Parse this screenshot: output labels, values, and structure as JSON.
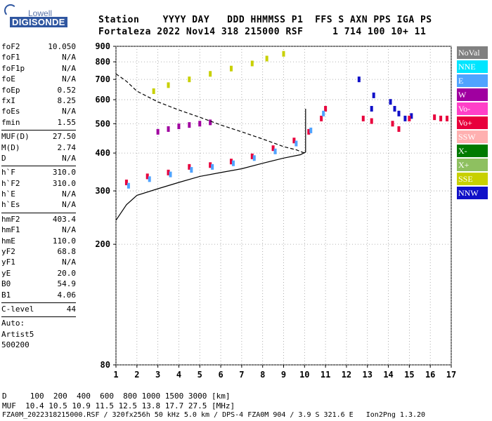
{
  "logo": {
    "top": "Lowell",
    "bottom": "DIGISONDE"
  },
  "header": {
    "line1": "Station    YYYY DAY   DDD HHMMSS P1  FFS S AXN PPS IGA PS",
    "line2": "Fortaleza 2022 Nov14 318 215000 RSF     1 714 100 10+ 11"
  },
  "params": [
    {
      "k": "foF2",
      "v": "10.050"
    },
    {
      "k": "foF1",
      "v": "N/A"
    },
    {
      "k": "foF1p",
      "v": "N/A"
    },
    {
      "k": "foE",
      "v": "N/A"
    },
    {
      "k": "foEp",
      "v": "0.52"
    },
    {
      "k": "fxI",
      "v": "8.25"
    },
    {
      "k": "foEs",
      "v": "N/A"
    },
    {
      "k": "fmin",
      "v": "1.55"
    },
    {
      "sep": true
    },
    {
      "k": "MUF(D)",
      "v": "27.50"
    },
    {
      "k": "M(D)",
      "v": "2.74"
    },
    {
      "k": "D",
      "v": "N/A"
    },
    {
      "sep": true
    },
    {
      "k": "h`F",
      "v": "310.0"
    },
    {
      "k": "h`F2",
      "v": "310.0"
    },
    {
      "k": "h`E",
      "v": "N/A"
    },
    {
      "k": "h`Es",
      "v": "N/A"
    },
    {
      "sep": true
    },
    {
      "k": "hmF2",
      "v": "403.4"
    },
    {
      "k": "hmF1",
      "v": "N/A"
    },
    {
      "k": "hmE",
      "v": "110.0"
    },
    {
      "k": "yF2",
      "v": "68.8"
    },
    {
      "k": "yF1",
      "v": "N/A"
    },
    {
      "k": "yE",
      "v": "20.0"
    },
    {
      "k": "B0",
      "v": "54.9"
    },
    {
      "k": "B1",
      "v": "4.06"
    },
    {
      "sep": true
    },
    {
      "k": "C-level",
      "v": "44"
    },
    {
      "sep": true
    },
    {
      "k": "Auto:",
      "v": ""
    },
    {
      "k": "Artist5",
      "v": ""
    },
    {
      "k": "500200",
      "v": ""
    }
  ],
  "legend": [
    {
      "label": "NoVal",
      "color": "#808080"
    },
    {
      "label": "NNE",
      "color": "#00e5ff"
    },
    {
      "label": "E",
      "color": "#4fa3ff"
    },
    {
      "label": "W",
      "color": "#a000a0"
    },
    {
      "label": "Vo-",
      "color": "#ff40c8"
    },
    {
      "label": "Vo+",
      "color": "#e8003c"
    },
    {
      "label": "SSW",
      "color": "#ffb0b0"
    },
    {
      "label": "X-",
      "color": "#007a00"
    },
    {
      "label": "X+",
      "color": "#8ec060"
    },
    {
      "label": "SSE",
      "color": "#c8d000"
    },
    {
      "label": "NNW",
      "color": "#1010c8"
    }
  ],
  "footer": {
    "line1": "D     100  200  400  600  800 1000 1500 3000 [km]",
    "line2": "MUF  10.4 10.5 10.9 11.5 12.5 13.8 17.7 27.5 [MHz]",
    "line3": "FZA0M_2022318215000.RSF / 320fx256h 50 kHz 5.0 km / DPS-4 FZA0M 904 / 3.9 S 321.6 E   Ion2Png 1.3.20"
  },
  "chart_data": {
    "type": "scatter",
    "title": "",
    "xlabel": "",
    "ylabel": "",
    "xlim": [
      1,
      17
    ],
    "ylim": [
      80,
      900
    ],
    "y_scale": "log",
    "x_ticks": [
      1,
      2,
      3,
      4,
      5,
      6,
      7,
      8,
      9,
      10,
      11,
      12,
      13,
      14,
      15,
      16,
      17
    ],
    "y_ticks": [
      80,
      200,
      300,
      400,
      500,
      600,
      700,
      800,
      900
    ],
    "grid": true,
    "series": [
      {
        "style": "solid",
        "points": [
          [
            1,
            240
          ],
          [
            1.5,
            270
          ],
          [
            2,
            290
          ],
          [
            3,
            305
          ],
          [
            4,
            320
          ],
          [
            5,
            335
          ],
          [
            6,
            345
          ],
          [
            7,
            355
          ],
          [
            8,
            370
          ],
          [
            9,
            385
          ],
          [
            9.8,
            395
          ],
          [
            10.05,
            403
          ],
          [
            10.05,
            480
          ],
          [
            10.05,
            560
          ]
        ]
      },
      {
        "style": "dashed",
        "points": [
          [
            1,
            730
          ],
          [
            1.5,
            690
          ],
          [
            2,
            640
          ],
          [
            3,
            590
          ],
          [
            4,
            555
          ],
          [
            5,
            525
          ],
          [
            6,
            495
          ],
          [
            7,
            470
          ],
          [
            8,
            445
          ],
          [
            9,
            420
          ],
          [
            9.6,
            410
          ],
          [
            10.0,
            400
          ]
        ]
      }
    ],
    "echo_traces": [
      {
        "color": "#e8003c",
        "points": [
          [
            1.5,
            320
          ],
          [
            2.5,
            335
          ],
          [
            3.5,
            345
          ],
          [
            4.5,
            360
          ],
          [
            5.5,
            365
          ],
          [
            6.5,
            375
          ],
          [
            7.5,
            390
          ],
          [
            8.5,
            415
          ],
          [
            9.5,
            440
          ],
          [
            10.2,
            470
          ],
          [
            10.8,
            520
          ],
          [
            11.0,
            560
          ]
        ]
      },
      {
        "color": "#4fa3ff",
        "points": [
          [
            1.6,
            312
          ],
          [
            2.6,
            328
          ],
          [
            3.6,
            340
          ],
          [
            4.6,
            352
          ],
          [
            5.6,
            360
          ],
          [
            6.6,
            370
          ],
          [
            7.6,
            385
          ],
          [
            8.6,
            405
          ],
          [
            9.6,
            430
          ],
          [
            10.3,
            475
          ],
          [
            10.9,
            540
          ]
        ]
      },
      {
        "color": "#c8d000",
        "points": [
          [
            2.8,
            640
          ],
          [
            3.5,
            670
          ],
          [
            4.5,
            700
          ],
          [
            5.5,
            730
          ],
          [
            6.5,
            760
          ],
          [
            7.5,
            790
          ],
          [
            8.2,
            820
          ],
          [
            9.0,
            850
          ]
        ]
      },
      {
        "color": "#a000a0",
        "points": [
          [
            3.0,
            470
          ],
          [
            3.5,
            480
          ],
          [
            4.0,
            490
          ],
          [
            4.5,
            495
          ],
          [
            5.0,
            500
          ],
          [
            5.5,
            505
          ]
        ]
      },
      {
        "color": "#1010c8",
        "points": [
          [
            12.6,
            700
          ],
          [
            13.2,
            560
          ],
          [
            13.3,
            620
          ],
          [
            14.1,
            590
          ],
          [
            14.3,
            560
          ],
          [
            14.5,
            540
          ],
          [
            14.8,
            520
          ],
          [
            15.1,
            530
          ]
        ]
      },
      {
        "color": "#e8003c",
        "points": [
          [
            12.8,
            520
          ],
          [
            13.2,
            510
          ],
          [
            14.2,
            500
          ],
          [
            14.5,
            480
          ],
          [
            15.0,
            520
          ],
          [
            16.2,
            525
          ],
          [
            16.5,
            520
          ],
          [
            16.8,
            520
          ]
        ]
      }
    ]
  }
}
